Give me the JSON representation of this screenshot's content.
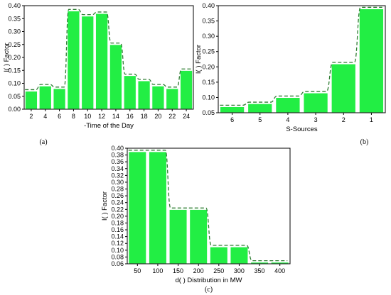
{
  "colors": {
    "bar": "#22ee44",
    "envelope": "#2e7d32"
  },
  "chart_data": [
    {
      "id": "a",
      "type": "bar",
      "panel_label": "(a)",
      "title": "",
      "xlabel": "-Time of the Day",
      "ylabel": "I(   ) Factor",
      "categories": [
        "2",
        "4",
        "6",
        "8",
        "10",
        "12",
        "14",
        "16",
        "18",
        "20",
        "22",
        "24"
      ],
      "values": [
        0.07,
        0.09,
        0.08,
        0.38,
        0.36,
        0.37,
        0.25,
        0.13,
        0.11,
        0.09,
        0.08,
        0.15
      ],
      "ylim": [
        0.0,
        0.4
      ],
      "yticks": [
        "0.00",
        "0.05",
        "0.10",
        "0.15",
        "0.20",
        "0.25",
        "0.30",
        "0.35",
        "0.40"
      ],
      "grid": false,
      "envelope": true
    },
    {
      "id": "b",
      "type": "bar",
      "panel_label": "(b)",
      "title": "",
      "xlabel": "S-Sources",
      "ylabel": "I(   ) Factor",
      "categories": [
        "6",
        "5",
        "4",
        "3",
        "2",
        "1"
      ],
      "values": [
        0.07,
        0.08,
        0.1,
        0.115,
        0.21,
        0.39
      ],
      "ylim": [
        0.05,
        0.4
      ],
      "yticks": [
        "0.05",
        "0.10",
        "0.15",
        "0.20",
        "0.25",
        "0.30",
        "0.35",
        "0.40"
      ],
      "grid": false,
      "envelope": true
    },
    {
      "id": "c",
      "type": "bar",
      "panel_label": "(c)",
      "title": "",
      "xlabel": "d(   ) Distribution in MW",
      "ylabel": "I(   ) Factor",
      "categories": [
        "50",
        "100",
        "150",
        "200",
        "250",
        "300",
        "350",
        "400"
      ],
      "values": [
        0.39,
        0.39,
        0.22,
        0.22,
        0.11,
        0.11,
        0.065,
        0.065
      ],
      "ylim": [
        0.06,
        0.4
      ],
      "yticks": [
        "0.06",
        "0.08",
        "0.10",
        "0.12",
        "0.14",
        "0.16",
        "0.18",
        "0.20",
        "0.22",
        "0.24",
        "0.26",
        "0.28",
        "0.30",
        "0.32",
        "0.34",
        "0.36",
        "0.38",
        "0.40"
      ],
      "grid": false,
      "envelope": true
    }
  ]
}
